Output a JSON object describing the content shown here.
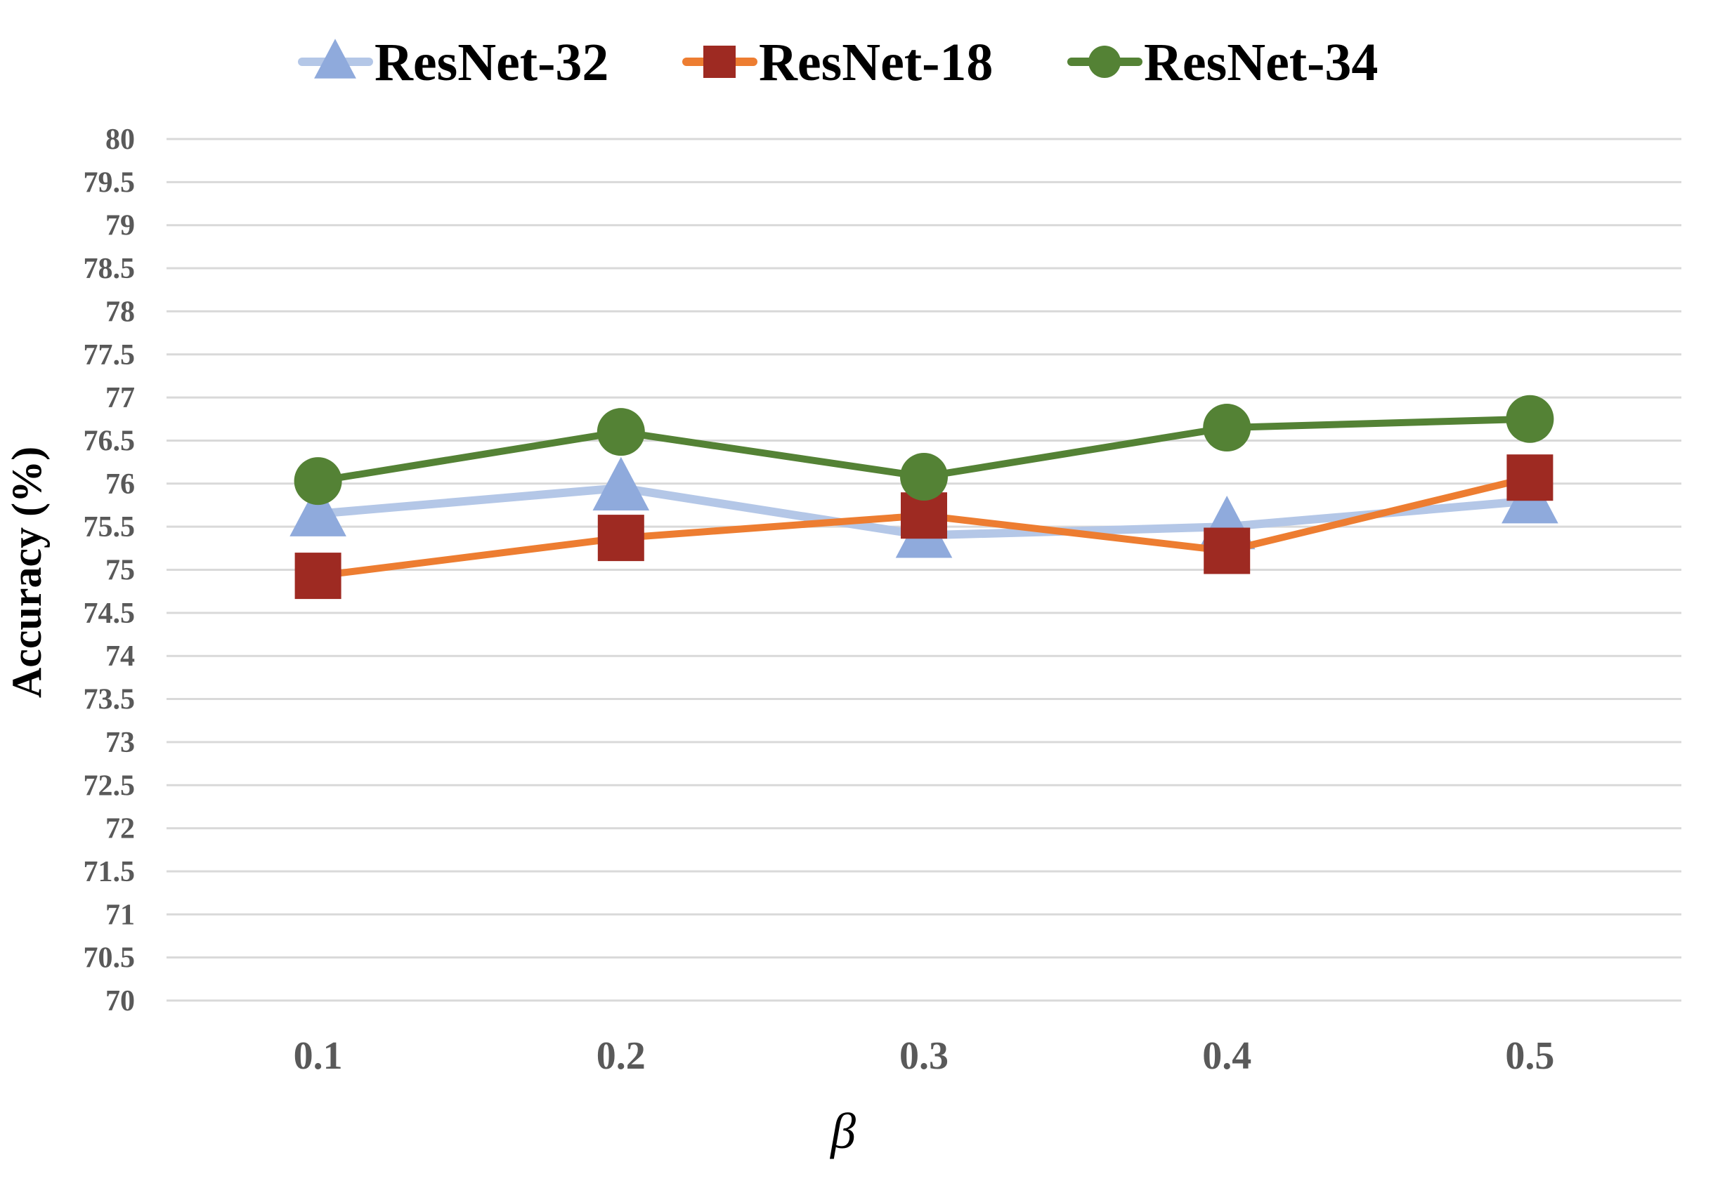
{
  "chart_data": {
    "type": "line",
    "title": "",
    "xlabel": "β",
    "ylabel": "Accuracy (%)",
    "categories": [
      "0.1",
      "0.2",
      "0.3",
      "0.4",
      "0.5"
    ],
    "ylim": [
      70,
      80
    ],
    "yticks": [
      "70",
      "70.5",
      "71",
      "71.5",
      "72",
      "72.5",
      "73",
      "73.5",
      "74",
      "74.5",
      "75",
      "75.5",
      "76",
      "76.5",
      "77",
      "77.5",
      "78",
      "78.5",
      "79",
      "79.5",
      "80"
    ],
    "grid": true,
    "legend_position": "top",
    "series": [
      {
        "name": "ResNet-32",
        "values": [
          75.65,
          75.95,
          75.4,
          75.5,
          75.8
        ],
        "line_color": "#b4c7e7",
        "marker_color": "#8faadc",
        "marker": "triangle"
      },
      {
        "name": "ResNet-18",
        "values": [
          74.93,
          75.37,
          75.63,
          75.22,
          76.07
        ],
        "line_color": "#ed7d31",
        "marker_color": "#9e2a22",
        "marker": "square"
      },
      {
        "name": "ResNet-34",
        "values": [
          76.03,
          76.6,
          76.08,
          76.65,
          76.75
        ],
        "line_color": "#548235",
        "marker_color": "#548235",
        "marker": "circle"
      }
    ]
  }
}
